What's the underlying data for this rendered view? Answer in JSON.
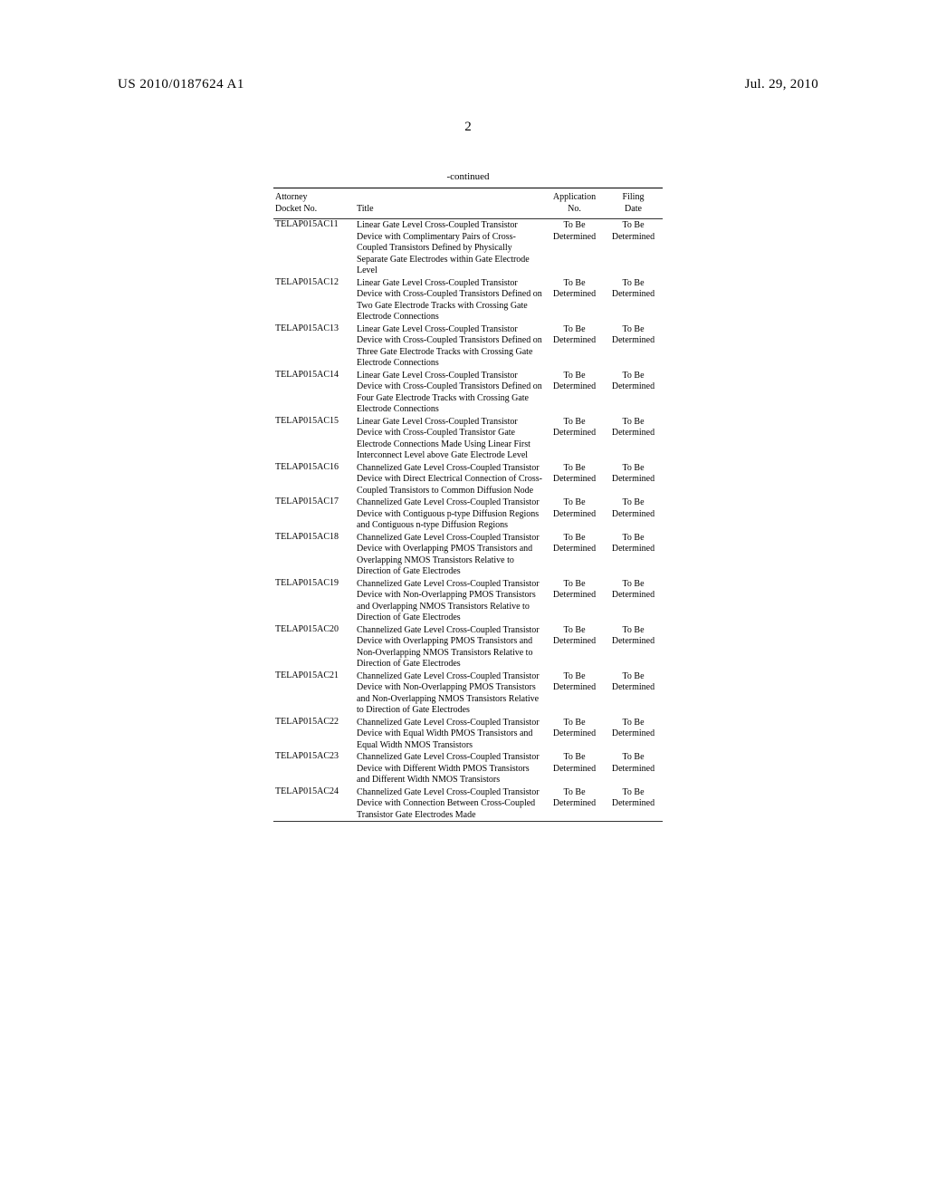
{
  "header": {
    "publication_number": "US 2010/0187624 A1",
    "publication_date": "Jul. 29, 2010"
  },
  "page_number": "2",
  "continued_label": "-continued",
  "columns": {
    "docket": "Attorney\nDocket No.",
    "title": "Title",
    "appno": "Application\nNo.",
    "date": "Filing\nDate"
  },
  "rows": [
    {
      "docket": "TELAP015AC11",
      "title": "Linear Gate Level Cross-Coupled Transistor Device with Complimentary Pairs of Cross-Coupled Transistors Defined by Physically Separate Gate Electrodes within Gate Electrode Level",
      "appno": "To Be Determined",
      "date": "To Be Determined"
    },
    {
      "docket": "TELAP015AC12",
      "title": "Linear Gate Level Cross-Coupled Transistor Device with Cross-Coupled Transistors Defined on Two Gate Electrode Tracks with Crossing Gate Electrode Connections",
      "appno": "To Be Determined",
      "date": "To Be Determined"
    },
    {
      "docket": "TELAP015AC13",
      "title": "Linear Gate Level Cross-Coupled Transistor Device with Cross-Coupled Transistors Defined on Three Gate Electrode Tracks with Crossing Gate Electrode Connections",
      "appno": "To Be Determined",
      "date": "To Be Determined"
    },
    {
      "docket": "TELAP015AC14",
      "title": "Linear Gate Level Cross-Coupled Transistor Device with Cross-Coupled Transistors Defined on Four Gate Electrode Tracks with Crossing Gate Electrode Connections",
      "appno": "To Be Determined",
      "date": "To Be Determined"
    },
    {
      "docket": "TELAP015AC15",
      "title": "Linear Gate Level Cross-Coupled Transistor Device with Cross-Coupled Transistor Gate Electrode Connections Made Using Linear First Interconnect Level above Gate Electrode Level",
      "appno": "To Be Determined",
      "date": "To Be Determined"
    },
    {
      "docket": "TELAP015AC16",
      "title": "Channelized Gate Level Cross-Coupled Transistor Device with Direct Electrical Connection of Cross-Coupled Transistors to Common Diffusion Node",
      "appno": "To Be Determined",
      "date": "To Be Determined"
    },
    {
      "docket": "TELAP015AC17",
      "title": "Channelized Gate Level Cross-Coupled Transistor Device with Contiguous p-type Diffusion Regions and Contiguous n-type Diffusion Regions",
      "appno": "To Be Determined",
      "date": "To Be Determined"
    },
    {
      "docket": "TELAP015AC18",
      "title": "Channelized Gate Level Cross-Coupled Transistor Device with Overlapping PMOS Transistors and Overlapping NMOS Transistors Relative to Direction of Gate Electrodes",
      "appno": "To Be Determined",
      "date": "To Be Determined"
    },
    {
      "docket": "TELAP015AC19",
      "title": "Channelized Gate Level Cross-Coupled Transistor Device with Non-Overlapping PMOS Transistors and Overlapping NMOS Transistors Relative to Direction of Gate Electrodes",
      "appno": "To Be Determined",
      "date": "To Be Determined"
    },
    {
      "docket": "TELAP015AC20",
      "title": "Channelized Gate Level Cross-Coupled Transistor Device with Overlapping PMOS Transistors and Non-Overlapping NMOS Transistors Relative to Direction of Gate Electrodes",
      "appno": "To Be Determined",
      "date": "To Be Determined"
    },
    {
      "docket": "TELAP015AC21",
      "title": "Channelized Gate Level Cross-Coupled Transistor Device with Non-Overlapping PMOS Transistors and Non-Overlapping NMOS Transistors Relative to Direction of Gate Electrodes",
      "appno": "To Be Determined",
      "date": "To Be Determined"
    },
    {
      "docket": "TELAP015AC22",
      "title": "Channelized Gate Level Cross-Coupled Transistor Device with Equal Width PMOS Transistors and Equal Width NMOS Transistors",
      "appno": "To Be Determined",
      "date": "To Be Determined"
    },
    {
      "docket": "TELAP015AC23",
      "title": "Channelized Gate Level Cross-Coupled Transistor Device with Different Width PMOS Transistors and Different Width NMOS Transistors",
      "appno": "To Be Determined",
      "date": "To Be Determined"
    },
    {
      "docket": "TELAP015AC24",
      "title": "Channelized Gate Level Cross-Coupled Transistor Device with Connection Between Cross-Coupled Transistor Gate Electrodes Made",
      "appno": "To Be Determined",
      "date": "To Be Determined"
    }
  ]
}
